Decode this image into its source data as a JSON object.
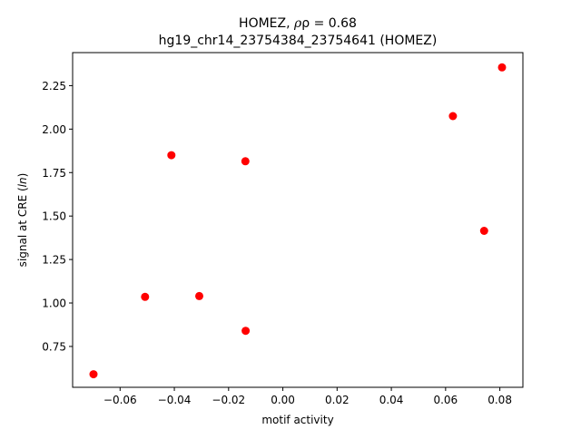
{
  "chart_data": {
    "type": "scatter",
    "title_prefix": "HOMEZ, ",
    "title_rho": "ρ = 0.68",
    "subtitle": "hg19_chr14_23754384_23754641 (HOMEZ)",
    "xlabel": "motif activity",
    "ylabel_prefix": "signal at CRE (",
    "ylabel_ln": "ln",
    "ylabel_suffix": ")",
    "xlim": [
      -0.0775,
      0.0885
    ],
    "ylim": [
      0.515,
      2.44
    ],
    "xticks": [
      -0.06,
      -0.04,
      -0.02,
      0.0,
      0.02,
      0.04,
      0.06,
      0.08
    ],
    "xtick_labels": [
      "−0.06",
      "−0.04",
      "−0.02",
      "0.00",
      "0.02",
      "0.04",
      "0.06",
      "0.08"
    ],
    "yticks": [
      0.75,
      1.0,
      1.25,
      1.5,
      1.75,
      2.0,
      2.25
    ],
    "ytick_labels": [
      "0.75",
      "1.00",
      "1.25",
      "1.50",
      "1.75",
      "2.00",
      "2.25"
    ],
    "grid": false,
    "marker_color": "#ff0000",
    "points": [
      {
        "x": -0.0698,
        "y": 0.59
      },
      {
        "x": -0.0508,
        "y": 1.035
      },
      {
        "x": -0.0411,
        "y": 1.85
      },
      {
        "x": -0.0308,
        "y": 1.04
      },
      {
        "x": -0.0138,
        "y": 1.815
      },
      {
        "x": -0.0137,
        "y": 0.84
      },
      {
        "x": 0.0627,
        "y": 2.075
      },
      {
        "x": 0.0742,
        "y": 1.415
      },
      {
        "x": 0.0808,
        "y": 2.355
      }
    ]
  }
}
